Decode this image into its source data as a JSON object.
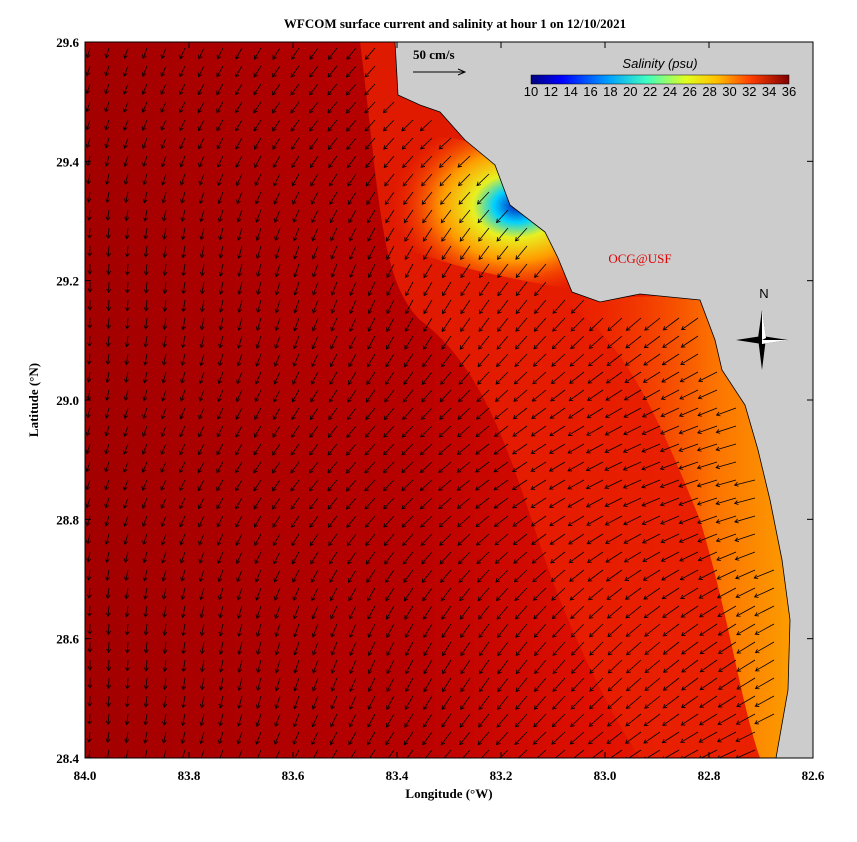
{
  "title": "WFCOM surface current and salinity at hour 1 on 12/10/2021",
  "x_axis": {
    "label": "Longitude (°W)",
    "ticks": [
      "84.0",
      "83.8",
      "83.6",
      "83.4",
      "83.2",
      "83.0",
      "82.8",
      "82.6"
    ]
  },
  "y_axis": {
    "label": "Latitude (°N)",
    "ticks": [
      "29.6",
      "29.4",
      "29.2",
      "29.0",
      "28.8",
      "28.6",
      "28.4"
    ]
  },
  "scale_label": "50 cm/s",
  "colorbar": {
    "title": "Salinity (psu)",
    "ticks": [
      "10",
      "12",
      "14",
      "16",
      "18",
      "20",
      "22",
      "24",
      "26",
      "28",
      "30",
      "32",
      "34",
      "36"
    ]
  },
  "credit": "OCG@USF",
  "compass": "N"
}
